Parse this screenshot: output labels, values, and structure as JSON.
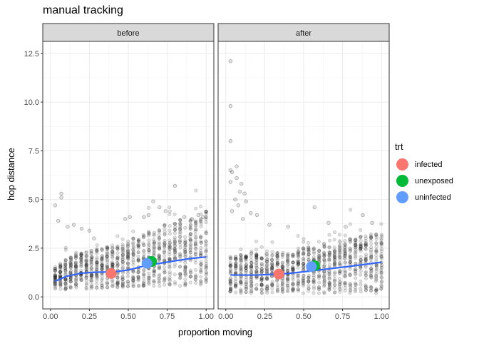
{
  "title": "manual tracking",
  "chart_data": {
    "type": "scatter",
    "title": "manual tracking",
    "xlabel": "proportion moving",
    "ylabel": "hop distance",
    "xlim": [
      0.0,
      1.0
    ],
    "ylim": [
      0.0,
      12.5
    ],
    "x_ticks": [
      "0.00",
      "0.25",
      "0.50",
      "0.75",
      "1.00"
    ],
    "y_ticks": [
      "0.0",
      "2.5",
      "5.0",
      "7.5",
      "10.0",
      "12.5"
    ],
    "grid": true,
    "legend": {
      "title": "trt",
      "position": "right",
      "entries": [
        {
          "name": "infected",
          "color": "#F8766D"
        },
        {
          "name": "unexposed",
          "color": "#00BA38"
        },
        {
          "name": "uninfected",
          "color": "#619CFF"
        }
      ]
    },
    "panels": [
      {
        "facet": "before",
        "trend_line": {
          "x": [
            0.03,
            0.1,
            0.2,
            0.3,
            0.4,
            0.5,
            0.6,
            0.7,
            0.8,
            0.9,
            1.0
          ],
          "y": [
            0.8,
            1.05,
            1.22,
            1.27,
            1.28,
            1.38,
            1.58,
            1.72,
            1.85,
            1.97,
            2.05
          ]
        },
        "group_means": [
          {
            "trt": "infected",
            "x": 0.39,
            "y": 1.2
          },
          {
            "trt": "unexposed",
            "x": 0.65,
            "y": 1.82
          },
          {
            "trt": "uninfected",
            "x": 0.62,
            "y": 1.72
          }
        ],
        "outliers": [
          {
            "x": 0.03,
            "y": 4.7
          },
          {
            "x": 0.07,
            "y": 5.3
          },
          {
            "x": 0.07,
            "y": 5.1
          },
          {
            "x": 0.05,
            "y": 3.9
          },
          {
            "x": 0.11,
            "y": 3.6
          },
          {
            "x": 0.15,
            "y": 3.7
          },
          {
            "x": 0.2,
            "y": 3.5
          },
          {
            "x": 0.25,
            "y": 3.4
          },
          {
            "x": 0.28,
            "y": 3.0
          },
          {
            "x": 0.48,
            "y": 4.0
          },
          {
            "x": 0.51,
            "y": 4.1
          },
          {
            "x": 0.6,
            "y": 4.1
          },
          {
            "x": 0.63,
            "y": 4.2
          },
          {
            "x": 0.66,
            "y": 4.9
          },
          {
            "x": 0.7,
            "y": 4.6
          },
          {
            "x": 0.74,
            "y": 4.4
          },
          {
            "x": 0.8,
            "y": 5.7
          },
          {
            "x": 0.86,
            "y": 4.1
          },
          {
            "x": 0.91,
            "y": 4.0
          },
          {
            "x": 0.95,
            "y": 4.2
          },
          {
            "x": 0.98,
            "y": 4.1
          }
        ]
      },
      {
        "facet": "after",
        "trend_line": {
          "x": [
            0.03,
            0.2,
            0.4,
            0.6,
            0.8,
            1.0
          ],
          "y": [
            1.12,
            1.12,
            1.2,
            1.38,
            1.57,
            1.78
          ]
        },
        "group_means": [
          {
            "trt": "infected",
            "x": 0.34,
            "y": 1.17
          },
          {
            "trt": "unexposed",
            "x": 0.57,
            "y": 1.6
          },
          {
            "trt": "uninfected",
            "x": 0.55,
            "y": 1.55
          }
        ],
        "outliers": [
          {
            "x": 0.03,
            "y": 12.1
          },
          {
            "x": 0.03,
            "y": 9.8
          },
          {
            "x": 0.03,
            "y": 8.0
          },
          {
            "x": 0.03,
            "y": 6.5
          },
          {
            "x": 0.04,
            "y": 6.4
          },
          {
            "x": 0.07,
            "y": 6.7
          },
          {
            "x": 0.07,
            "y": 6.1
          },
          {
            "x": 0.03,
            "y": 5.9
          },
          {
            "x": 0.09,
            "y": 5.4
          },
          {
            "x": 0.1,
            "y": 5.8
          },
          {
            "x": 0.12,
            "y": 5.3
          },
          {
            "x": 0.06,
            "y": 5.0
          },
          {
            "x": 0.13,
            "y": 4.9
          },
          {
            "x": 0.08,
            "y": 4.7
          },
          {
            "x": 0.04,
            "y": 4.4
          },
          {
            "x": 0.16,
            "y": 4.3
          },
          {
            "x": 0.2,
            "y": 4.2
          },
          {
            "x": 0.11,
            "y": 4.0
          },
          {
            "x": 0.28,
            "y": 3.7
          },
          {
            "x": 0.4,
            "y": 3.6
          },
          {
            "x": 0.57,
            "y": 4.6
          },
          {
            "x": 0.66,
            "y": 3.8
          },
          {
            "x": 0.77,
            "y": 3.6
          },
          {
            "x": 0.88,
            "y": 4.2
          },
          {
            "x": 0.94,
            "y": 3.8
          }
        ]
      }
    ]
  }
}
